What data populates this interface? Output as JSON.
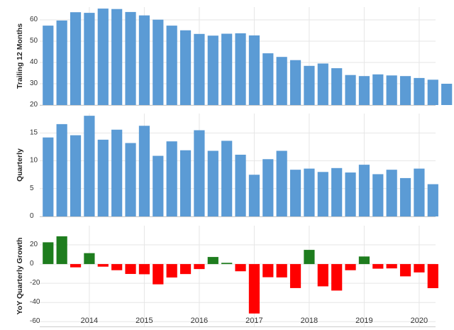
{
  "chart_data": [
    {
      "type": "bar",
      "ylabel": "Trailing 12 Months",
      "ylim": [
        20,
        66
      ],
      "yticks": [
        20,
        30,
        40,
        50,
        60
      ],
      "color": "#5b9bd5",
      "values": [
        57.3,
        59.7,
        63.6,
        63.3,
        65.3,
        65.1,
        63.7,
        62.1,
        60.1,
        57.3,
        55.1,
        53.4,
        52.6,
        53.5,
        53.7,
        52.7,
        44.3,
        42.6,
        41.1,
        38.4,
        39.5,
        37.3,
        34.1,
        33.6,
        34.4,
        33.9,
        33.6,
        32.7,
        31.9,
        30.0
      ]
    },
    {
      "type": "bar",
      "ylabel": "Quarterly",
      "ylim": [
        0,
        18.5
      ],
      "yticks": [
        0,
        5,
        10,
        15
      ],
      "color": "#5b9bd5",
      "values": [
        14.2,
        16.6,
        14.6,
        18.1,
        13.8,
        15.6,
        13.2,
        16.3,
        10.9,
        13.5,
        11.9,
        15.5,
        11.8,
        13.6,
        11.1,
        7.5,
        10.3,
        11.8,
        8.4,
        8.6,
        8.0,
        8.7,
        7.9,
        9.3,
        7.6,
        8.4,
        6.9,
        8.6,
        5.8
      ]
    },
    {
      "type": "bar",
      "ylabel": "YoY Quarterly Growth",
      "ylim": [
        -65,
        40
      ],
      "yticks": [
        -60,
        -40,
        -20,
        0,
        20
      ],
      "positive_color": "#1e7d1e",
      "negative_color": "#ff0000",
      "values": [
        22.7,
        28.9,
        -3.4,
        11.4,
        -2.7,
        -6.4,
        -10.3,
        -10.6,
        -21.1,
        -14.0,
        -10.4,
        -5.2,
        7.4,
        1.3,
        -7.5,
        -51.5,
        -13.7,
        -13.9,
        -25.0,
        14.8,
        -23.2,
        -27.6,
        -6.4,
        7.9,
        -4.8,
        -4.5,
        -12.8,
        -8.7,
        -25.1
      ]
    }
  ],
  "x_axis": {
    "labels": [
      "2014",
      "2015",
      "2016",
      "2017",
      "2018",
      "2019",
      "2020"
    ],
    "tick_index": [
      3,
      7,
      11,
      15,
      19,
      23,
      27
    ]
  },
  "colors": {
    "grid": "#e6e6e6",
    "axis": "#cccccc"
  }
}
